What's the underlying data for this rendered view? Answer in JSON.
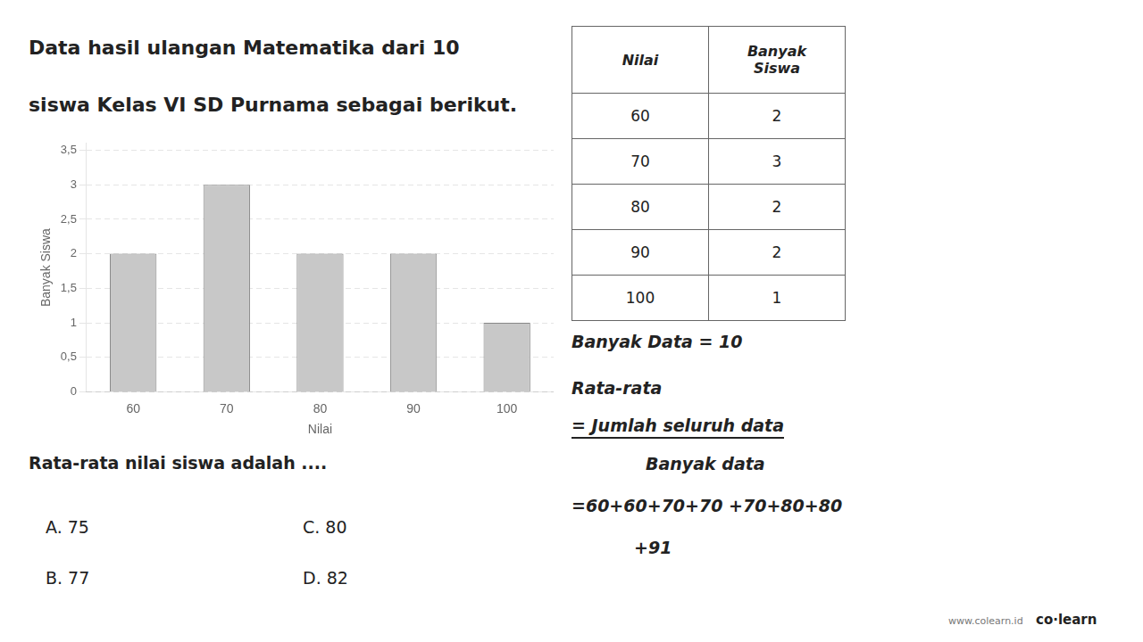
{
  "chart_data": {
    "type": "bar",
    "title": [
      "Data hasil ulangan Matematika dari 10",
      "siswa Kelas VI SD Purnama sebagai berikut."
    ],
    "categories": [
      60,
      70,
      80,
      90,
      100
    ],
    "values": [
      2,
      3,
      2,
      2,
      1
    ],
    "color": "#c8c8c8",
    "xlabel": "Nilai",
    "ylabel": "Banyak Siswa",
    "ylim": [
      0,
      3.6
    ],
    "yticks": [
      0,
      {
        "value": 0.5,
        "label": "0,5"
      },
      1,
      {
        "value": 1.5,
        "label": "1,5"
      },
      2,
      {
        "value": 2.5,
        "label": "2,5"
      },
      3,
      {
        "value": 3.5,
        "label": "3,5"
      }
    ],
    "grid": true,
    "table": {
      "columns": [
        "Nilai",
        "Banyak\nSiswa"
      ],
      "rows": [
        [
          60,
          2
        ],
        [
          70,
          3
        ],
        [
          80,
          2
        ],
        [
          90,
          2
        ],
        [
          100,
          1
        ]
      ]
    },
    "annotations": [
      "Rata-rata nilai siswa adalah ....",
      "A.   75",
      "B.   77",
      "C.   80",
      "D.   82",
      "Banyak Data = 10",
      "Rata-rata",
      "= Jumlah seluruh data",
      "Banyak data",
      "=60+60+70+70 +70+80+80",
      "+91",
      "co·learn",
      "www.colearn.id"
    ]
  }
}
